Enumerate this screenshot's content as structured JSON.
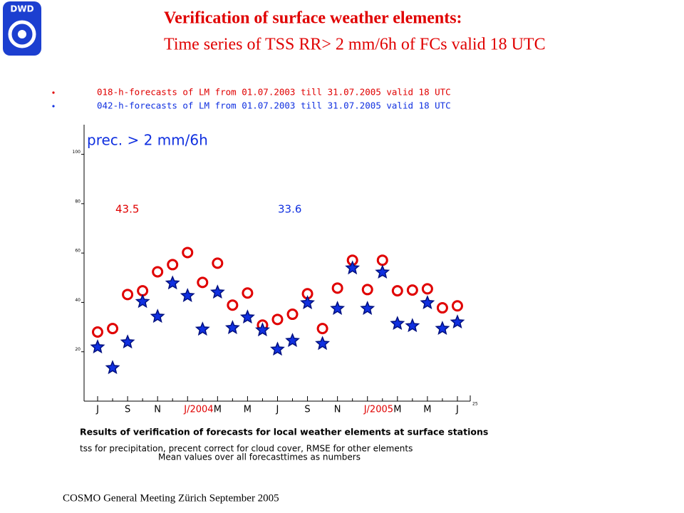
{
  "logo": "DWD",
  "header": {
    "title": "Verification of surface weather elements:",
    "subtitle": "Time series of  TSS RR> 2 mm/6h  of FCs valid 18 UTC"
  },
  "chart_data": {
    "type": "scatter",
    "label": "prec. > 2 mm/6h",
    "categories": [
      "J",
      null,
      "S",
      null,
      "N",
      null,
      "J/2004",
      null,
      "M",
      null,
      "M",
      null,
      "J",
      null,
      "S",
      null,
      "N",
      null,
      "J/2005",
      null,
      "M",
      null,
      "M",
      null,
      "J"
    ],
    "year_tick_color": "#e00000",
    "x_axis_end_label": "25",
    "series": [
      {
        "name": "018-h-forecasts of LM from 01.07.2003 till 31.07.2005 valid 18 UTC",
        "color": "#e00000",
        "marker": "circle",
        "values": [
          28,
          29.4,
          43.2,
          44.7,
          52.4,
          55.3,
          60.2,
          48.1,
          55.9,
          38.9,
          43.8,
          30.8,
          33.1,
          35.2,
          43.5,
          29.4,
          45.8,
          57.1,
          45.2,
          57.1,
          44.7,
          45,
          45.5,
          37.8,
          38.6
        ]
      },
      {
        "name": "042-h-forecasts of LM from 01.07.2003 till 31.07.2005 valid 18 UTC",
        "color": "#1030e0",
        "marker": "star",
        "values": [
          21.9,
          13.5,
          23.9,
          40.3,
          34.3,
          47.8,
          42.7,
          29.1,
          44.1,
          29.7,
          34,
          28.8,
          21,
          24.5,
          39.8,
          23.3,
          37.5,
          53.9,
          37.5,
          52.2,
          31.4,
          30.5,
          39.8,
          29.4,
          32
        ]
      }
    ],
    "annotations": [
      {
        "text": "43.5",
        "color": "#e00000"
      },
      {
        "text": "33.6",
        "color": "#1030e0"
      }
    ],
    "ylim": [
      0,
      112
    ],
    "yticks": [
      20,
      40,
      60,
      80,
      100
    ]
  },
  "notes": [
    "Results of verification of forecasts for local weather elements at surface stations",
    "tss for precipitation, precent correct for cloud cover,  RMSE for other elements",
    "Mean values over all forecasttimes as numbers"
  ],
  "footer": "COSMO General Meeting  Zürich September 2005"
}
